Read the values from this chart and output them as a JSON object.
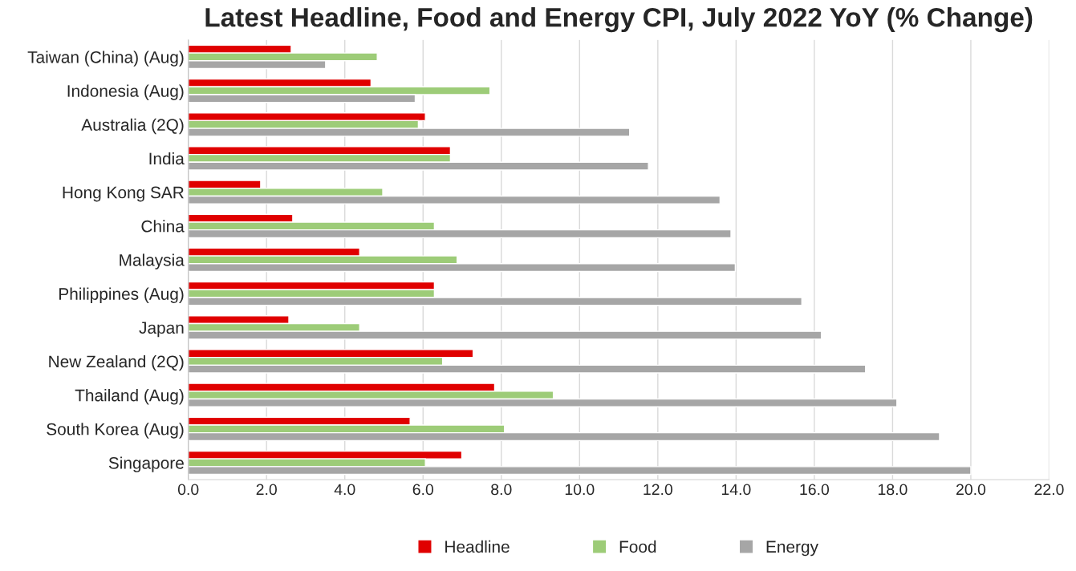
{
  "chart_data": {
    "type": "bar",
    "orientation": "horizontal",
    "title": "Latest Headline, Food and Energy CPI, July 2022 YoY (% Change)",
    "categories": [
      "Taiwan (China) (Aug)",
      "Indonesia (Aug)",
      "Australia (2Q)",
      "India",
      "Hong Kong SAR",
      "China",
      "Malaysia",
      "Philippines (Aug)",
      "Japan",
      "New Zealand (2Q)",
      "Thailand (Aug)",
      "South Korea (Aug)",
      "Singapore"
    ],
    "series": [
      {
        "name": "Headline",
        "color": "#e00000",
        "values": [
          2.63,
          4.67,
          6.06,
          6.7,
          1.85,
          2.67,
          4.38,
          6.29,
          2.57,
          7.28,
          7.83,
          5.67,
          6.99
        ]
      },
      {
        "name": "Food",
        "color": "#9dcc78",
        "values": [
          4.83,
          7.71,
          5.88,
          6.7,
          4.97,
          6.29,
          6.87,
          6.29,
          4.38,
          6.5,
          9.33,
          8.08,
          6.06
        ]
      },
      {
        "name": "Energy",
        "color": "#a6a6a6",
        "values": [
          3.51,
          5.8,
          11.28,
          11.76,
          13.59,
          13.87,
          13.98,
          15.68,
          16.18,
          17.31,
          18.11,
          19.2,
          20.0
        ]
      }
    ],
    "xlim": [
      0,
      22
    ],
    "xticks": [
      {
        "value": 0,
        "label": "0.0"
      },
      {
        "value": 2,
        "label": "2.0"
      },
      {
        "value": 4,
        "label": "4.0"
      },
      {
        "value": 6,
        "label": "6.0"
      },
      {
        "value": 8,
        "label": "8.0"
      },
      {
        "value": 10,
        "label": "10.0"
      },
      {
        "value": 12,
        "label": "12.0"
      },
      {
        "value": 14,
        "label": "14.0"
      },
      {
        "value": 16,
        "label": "16.0"
      },
      {
        "value": 18,
        "label": "18.0"
      },
      {
        "value": 20,
        "label": "20.0"
      },
      {
        "value": 22,
        "label": "22.0"
      }
    ],
    "grid": "x",
    "legend": "bottom"
  }
}
